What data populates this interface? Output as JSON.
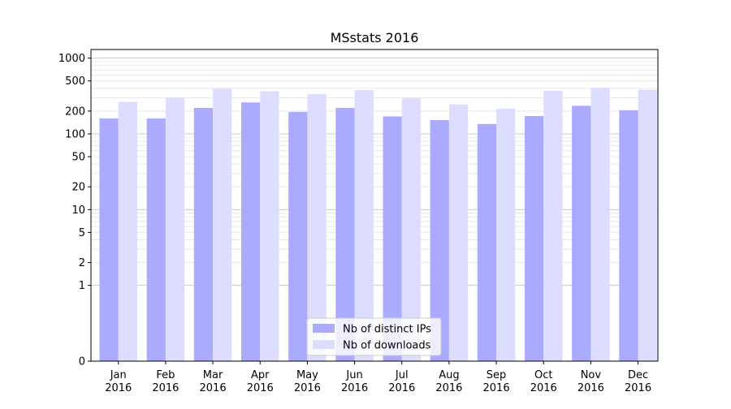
{
  "chart_data": {
    "type": "bar",
    "title": "MSstats 2016",
    "xlabel": "",
    "ylabel": "",
    "y_scale": "symlog",
    "ylim": [
      0,
      1300
    ],
    "y_ticks": [
      0,
      1,
      2,
      5,
      10,
      20,
      50,
      100,
      200,
      500,
      1000
    ],
    "y_tick_labels": [
      "0",
      "1",
      "2",
      "5",
      "10",
      "20",
      "50",
      "100",
      "200",
      "500",
      "1000"
    ],
    "grid": true,
    "legend_position": "bottom-center",
    "categories": [
      "Jan\n2016",
      "Feb\n2016",
      "Mar\n2016",
      "Apr\n2016",
      "May\n2016",
      "Jun\n2016",
      "Jul\n2016",
      "Aug\n2016",
      "Sep\n2016",
      "Oct\n2016",
      "Nov\n2016",
      "Dec\n2016"
    ],
    "series": [
      {
        "name": "Nb of distinct IPs",
        "color": "#aaaaff",
        "values": [
          160,
          160,
          220,
          260,
          195,
          220,
          170,
          152,
          135,
          172,
          235,
          205
        ]
      },
      {
        "name": "Nb of downloads",
        "color": "#ddddff",
        "values": [
          265,
          300,
          395,
          365,
          335,
          380,
          295,
          245,
          215,
          370,
          405,
          385
        ]
      }
    ]
  }
}
